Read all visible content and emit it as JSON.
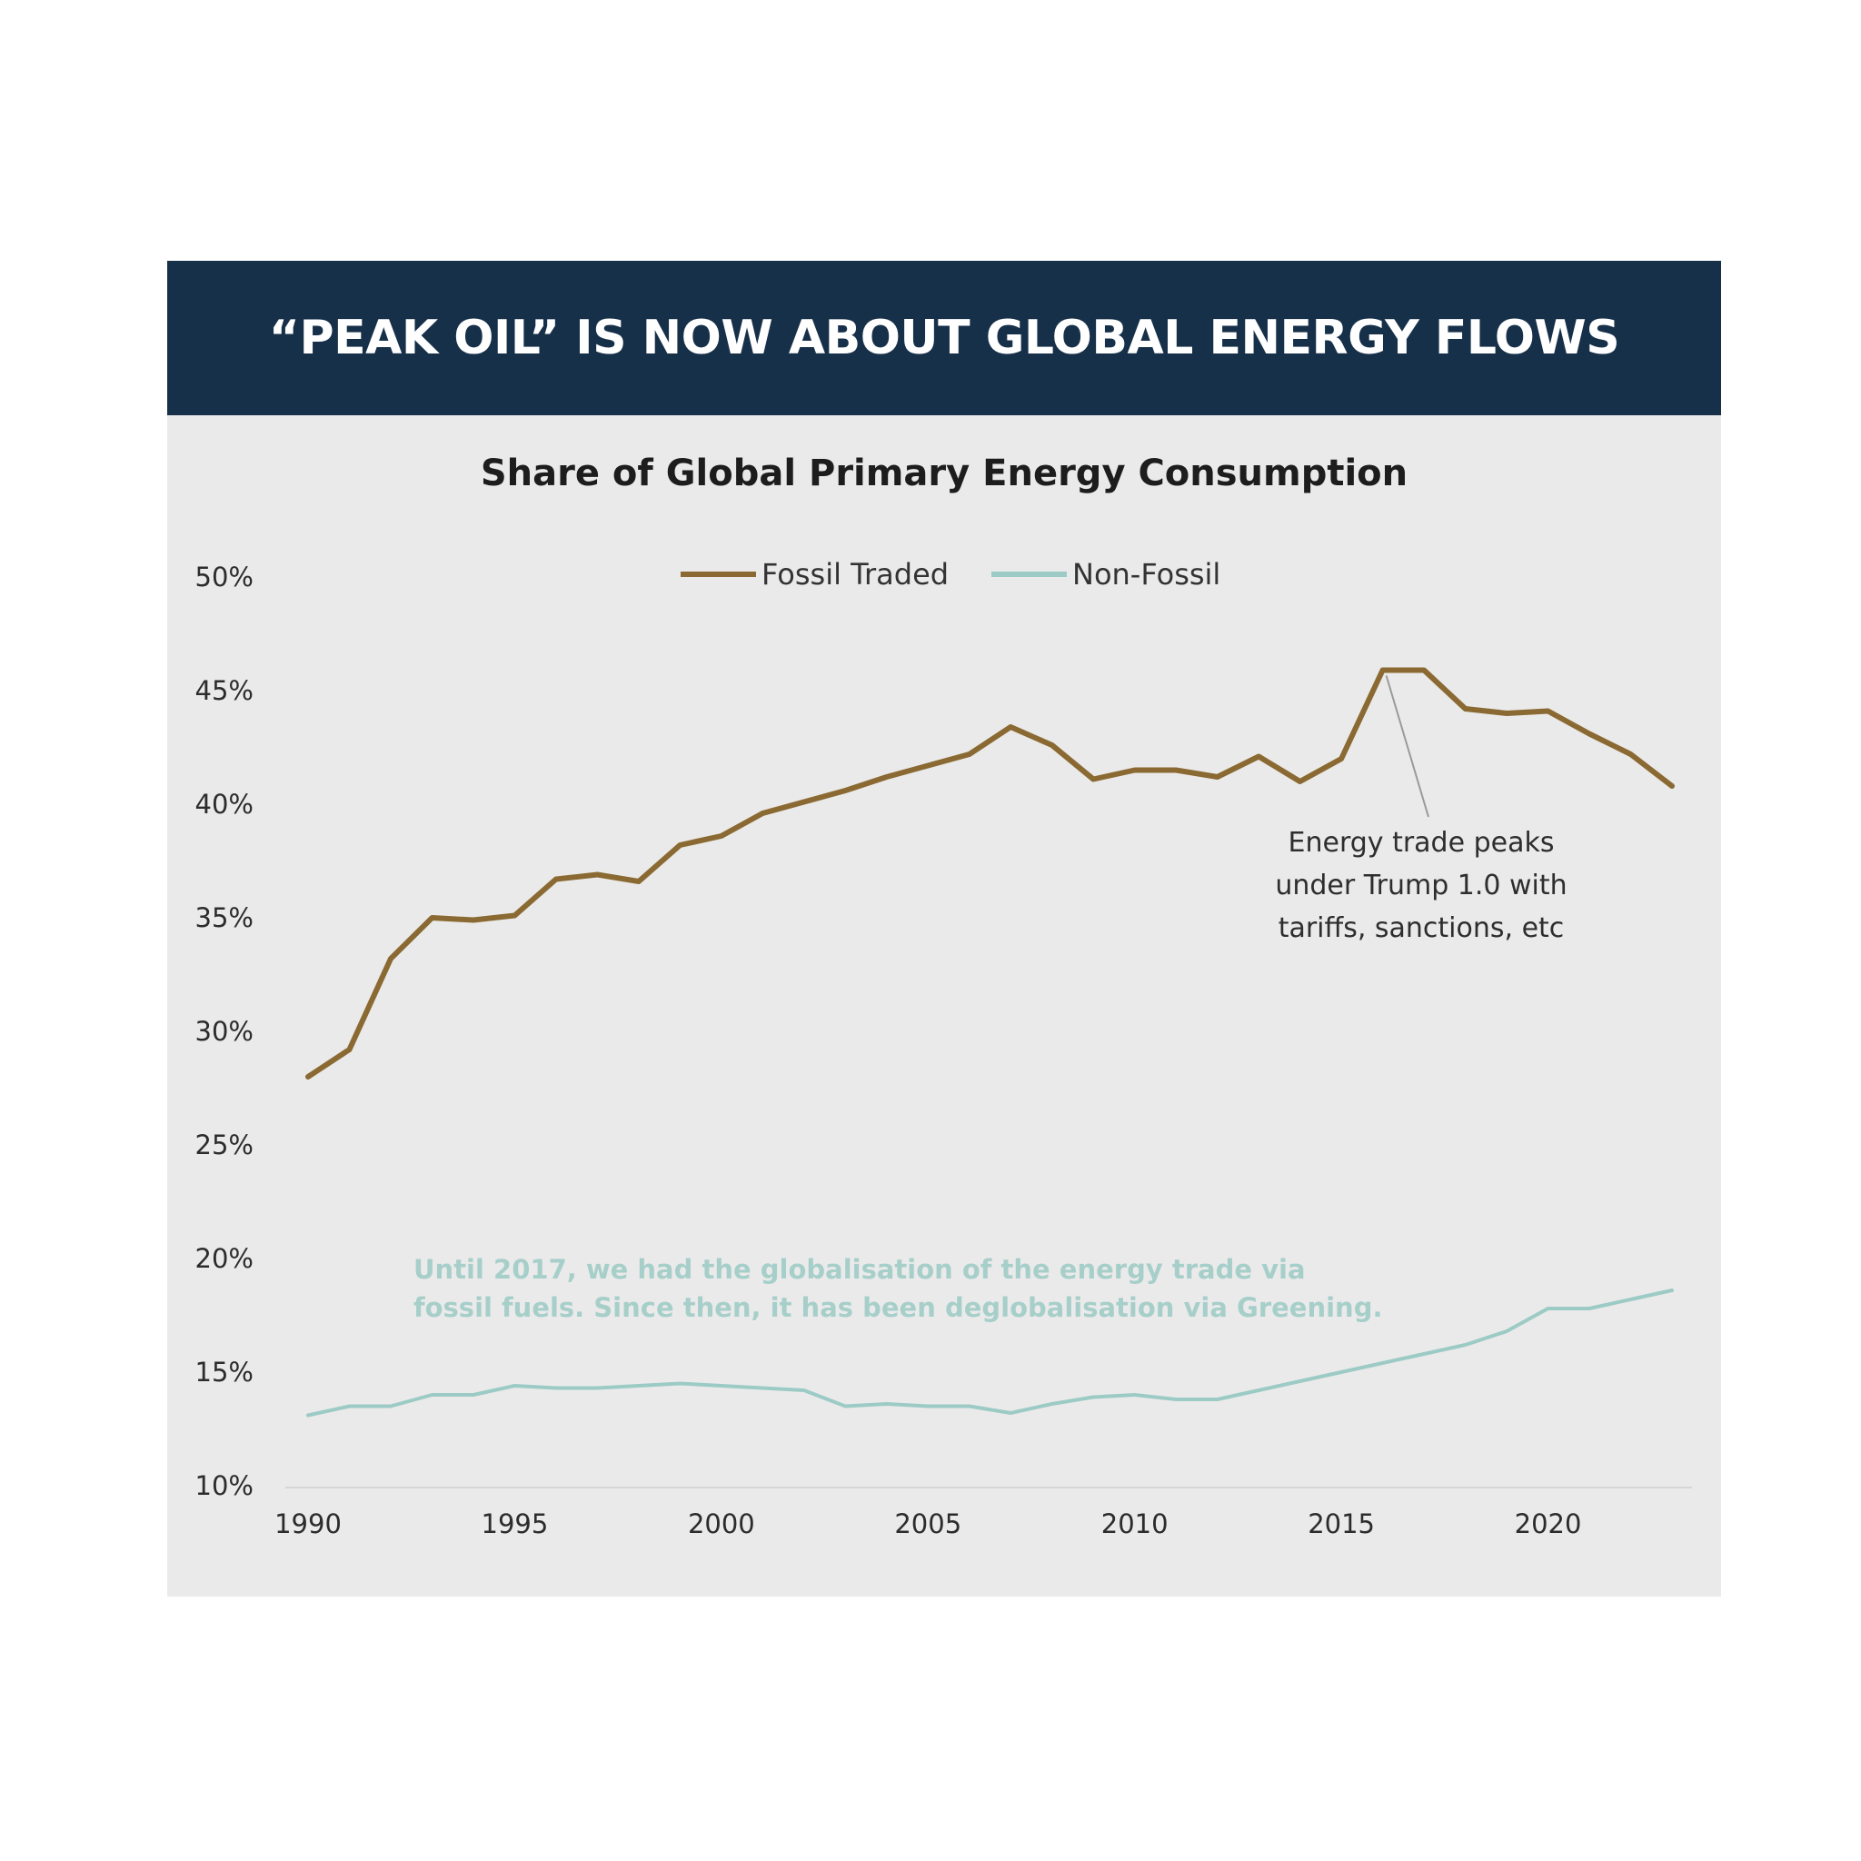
{
  "banner": {
    "title": "“PEAK OIL” IS NOW ABOUT GLOBAL ENERGY FLOWS",
    "background": "#173049"
  },
  "chart_data": {
    "type": "line",
    "title": "Share of Global Primary Energy Consumption",
    "xlabel": "",
    "ylabel": "",
    "xlim": [
      1990,
      2023
    ],
    "ylim": [
      10,
      50
    ],
    "x_ticks": [
      "1990",
      "1995",
      "2000",
      "2005",
      "2010",
      "2015",
      "2020"
    ],
    "y_ticks": [
      "10%",
      "15%",
      "20%",
      "25%",
      "30%",
      "35%",
      "40%",
      "45%",
      "50%"
    ],
    "grid": false,
    "legend": "top-center",
    "x": [
      1990,
      1991,
      1992,
      1993,
      1994,
      1995,
      1996,
      1997,
      1998,
      1999,
      2000,
      2001,
      2002,
      2003,
      2004,
      2005,
      2006,
      2007,
      2008,
      2009,
      2010,
      2011,
      2012,
      2013,
      2014,
      2015,
      2016,
      2017,
      2018,
      2019,
      2020,
      2021,
      2022,
      2023
    ],
    "series": [
      {
        "name": "Fossil Traded",
        "color": "#8a6a32",
        "values": [
          28.0,
          29.2,
          33.2,
          35.0,
          34.9,
          35.1,
          36.7,
          36.9,
          36.6,
          38.2,
          38.6,
          39.6,
          40.1,
          40.6,
          41.2,
          41.7,
          42.2,
          43.4,
          42.6,
          41.1,
          41.5,
          41.5,
          41.2,
          42.1,
          41.0,
          42.0,
          45.9,
          45.9,
          44.2,
          44.0,
          44.1,
          43.1,
          42.2,
          40.8
        ]
      },
      {
        "name": "Non-Fossil",
        "color": "#9ccbc6",
        "values": [
          13.1,
          13.5,
          13.5,
          14.0,
          14.0,
          14.4,
          14.3,
          14.3,
          14.4,
          14.5,
          14.4,
          14.3,
          14.2,
          13.5,
          13.6,
          13.5,
          13.5,
          13.2,
          13.6,
          13.9,
          14.0,
          13.8,
          13.8,
          14.2,
          14.6,
          15.0,
          15.4,
          15.8,
          16.2,
          16.8,
          17.8,
          17.8,
          18.2,
          18.6
        ]
      }
    ],
    "annotations": [
      {
        "id": "trade-peak",
        "lines": [
          "Energy trade peaks",
          "under Trump 1.0 with",
          "tariffs, sanctions, etc"
        ],
        "points_to": {
          "x": 2016,
          "y": 45.9
        }
      },
      {
        "id": "greening",
        "color": "#a7cfca",
        "lines": [
          "Until 2017, we had the globalisation of the energy trade via",
          "fossil fuels. Since then, it has been deglobalisation via Greening."
        ]
      }
    ]
  }
}
